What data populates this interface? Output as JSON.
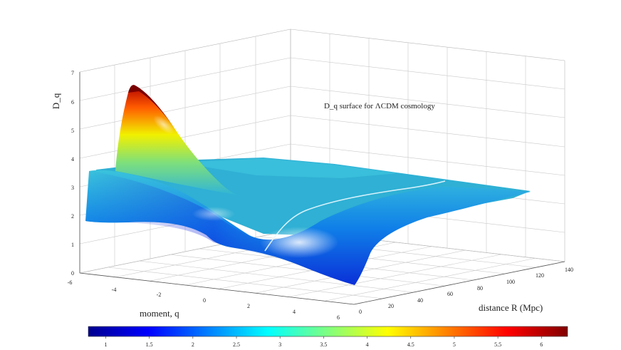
{
  "chart_data": {
    "type": "surface",
    "title": "D_q surface for ΛCDM cosmology",
    "zlabel": "D_q",
    "xlabel": "moment, q",
    "ylabel": "distance R (Mpc)",
    "x_ticks": [
      "-6",
      "-4",
      "-2",
      "0",
      "2",
      "4",
      "6"
    ],
    "y_ticks": [
      "0",
      "20",
      "40",
      "60",
      "80",
      "100",
      "120",
      "140"
    ],
    "z_ticks": [
      "0",
      "1",
      "2",
      "3",
      "4",
      "5",
      "6",
      "7"
    ],
    "xlim": [
      -6,
      6
    ],
    "ylim": [
      0,
      140
    ],
    "zlim": [
      0,
      7
    ],
    "colorbar_ticks": [
      "1",
      "1.5",
      "2",
      "2.5",
      "3",
      "3.5",
      "4",
      "4.5",
      "5",
      "5.5",
      "6"
    ],
    "colorbar_range": [
      0.8,
      6.3
    ],
    "colormap": "jet",
    "grid": true,
    "shading": "interp",
    "peak": {
      "q": -6,
      "R": 5,
      "Dq": 6.4
    },
    "plateau_Dq": 3.0,
    "min_region": {
      "q": 3,
      "R": 0,
      "Dq": 0.9
    }
  }
}
